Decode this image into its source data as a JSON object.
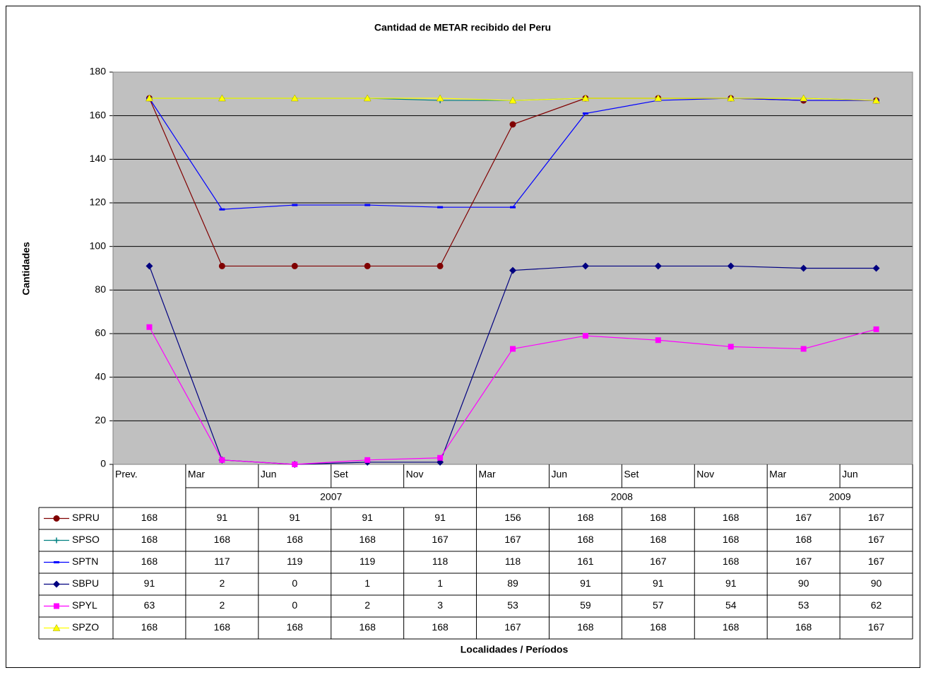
{
  "chart_data": {
    "type": "line",
    "title": "Cantidad de METAR recibido del Peru",
    "ylabel": "Cantidades",
    "xlabel": "Localidades / Períodos",
    "categories": [
      "Prev.",
      "Mar",
      "Jun",
      "Set",
      "Nov",
      "Mar",
      "Jun",
      "Set",
      "Nov",
      "Mar",
      "Jun"
    ],
    "groups": [
      {
        "label": "2007",
        "start": 1,
        "end": 4
      },
      {
        "label": "2008",
        "start": 5,
        "end": 8
      },
      {
        "label": "2009",
        "start": 9,
        "end": 10
      }
    ],
    "ylim": [
      0,
      180
    ],
    "yticks": [
      0,
      20,
      40,
      60,
      80,
      100,
      120,
      140,
      160,
      180
    ],
    "grid": true,
    "data_table": true,
    "series": [
      {
        "name": "SPRU",
        "color": "#800000",
        "marker": "circle",
        "values": [
          168,
          91,
          91,
          91,
          91,
          156,
          168,
          168,
          168,
          167,
          167
        ]
      },
      {
        "name": "SPSO",
        "color": "#008080",
        "marker": "plus",
        "values": [
          168,
          168,
          168,
          168,
          167,
          167,
          168,
          168,
          168,
          168,
          167
        ]
      },
      {
        "name": "SPTN",
        "color": "#0000ff",
        "marker": "dash",
        "values": [
          168,
          117,
          119,
          119,
          118,
          118,
          161,
          167,
          168,
          167,
          167
        ]
      },
      {
        "name": "SBPU",
        "color": "#000080",
        "marker": "diamond",
        "values": [
          91,
          2,
          0,
          1,
          1,
          89,
          91,
          91,
          91,
          90,
          90
        ]
      },
      {
        "name": "SPYL",
        "color": "#ff00ff",
        "marker": "square",
        "values": [
          63,
          2,
          0,
          2,
          3,
          53,
          59,
          57,
          54,
          53,
          62
        ]
      },
      {
        "name": "SPZO",
        "color": "#ffff00",
        "marker": "triangle",
        "values": [
          168,
          168,
          168,
          168,
          168,
          167,
          168,
          168,
          168,
          168,
          167
        ]
      }
    ]
  }
}
